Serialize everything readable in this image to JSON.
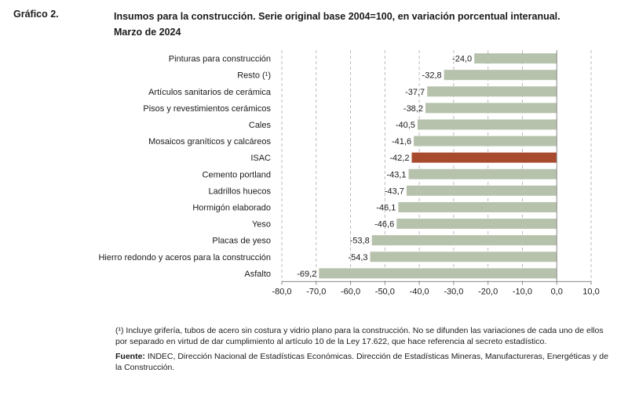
{
  "header": {
    "label": "Gráfico 2.",
    "title_line1": "Insumos para la construcción. Serie original base 2004=100, en variación porcentual interanual.",
    "title_line2": "Marzo de 2024"
  },
  "notes": {
    "footnote": "(¹) Incluye grifería, tubos de acero sin costura y vidrio plano para la construcción. No se difunden las variaciones de cada uno de ellos por separado en virtud de dar cumplimiento al artículo 10 de la Ley 17.622, que hace referencia al secreto estadístico.",
    "source_label": "Fuente:",
    "source_text": " INDEC, Dirección Nacional de Estadísticas Económicas. Dirección de Estadísticas Mineras, Manufactureras, Energéticas y de la Construcción."
  },
  "chart_data": {
    "type": "bar",
    "orientation": "horizontal",
    "categories": [
      "Pinturas para construcción",
      "Resto (¹)",
      "Artículos sanitarios de cerámica",
      "Pisos y revestimientos cerámicos",
      "Cales",
      "Mosaicos graníticos y calcáreos",
      "ISAC",
      "Cemento portland",
      "Ladrillos huecos",
      "Hormigón elaborado",
      "Yeso",
      "Placas de yeso",
      "Hierro redondo y aceros para la construcción",
      "Asfalto"
    ],
    "values": [
      -24.0,
      -32.8,
      -37.7,
      -38.2,
      -40.5,
      -41.6,
      -42.2,
      -43.1,
      -43.7,
      -46.1,
      -46.6,
      -53.8,
      -54.3,
      -69.2
    ],
    "value_labels": [
      "-24,0",
      "-32,8",
      "-37,7",
      "-38,2",
      "-40,5",
      "-41,6",
      "-42,2",
      "-43,1",
      "-43,7",
      "-46,1",
      "-46,6",
      "-53,8",
      "-54,3",
      "-69,2"
    ],
    "highlight": "ISAC",
    "xlim": [
      -80,
      10
    ],
    "xticks": [
      -80,
      -70,
      -60,
      -50,
      -40,
      -30,
      -20,
      -10,
      0,
      10
    ],
    "xtick_labels": [
      "-80,0",
      "-70,0",
      "-60,0",
      "-50,0",
      "-40,0",
      "-30,0",
      "-20,0",
      "-10,0",
      "0,0",
      "10,0"
    ],
    "grid": "vertical dashed",
    "colors": {
      "bar": "#b7c2ad",
      "highlight": "#a84a2e",
      "grid": "#bbbbbb",
      "axis": "#888888"
    }
  }
}
